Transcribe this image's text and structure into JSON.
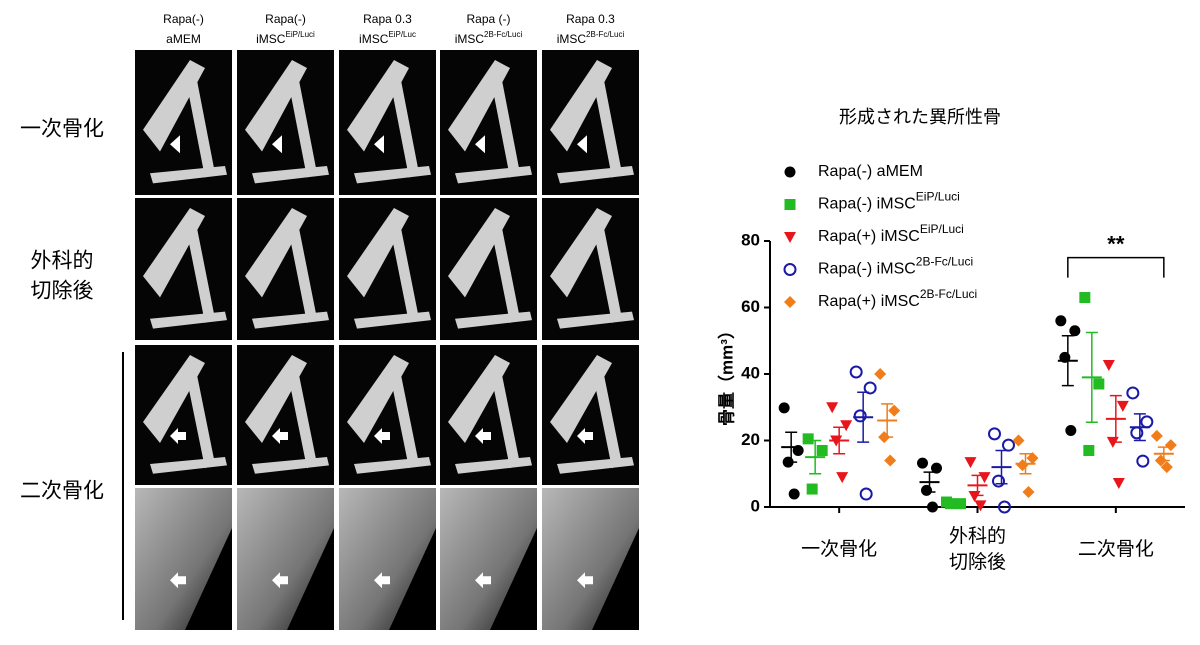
{
  "figure": {
    "column_headers": [
      {
        "top": "Rapa(-)",
        "bottom": "aMEM"
      },
      {
        "top": "Rapa(-)",
        "bottom": "iMSC",
        "bottom_sup": "EiP/Luci"
      },
      {
        "top": "Rapa 0.3",
        "bottom": "iMSC",
        "bottom_sup": "EiP/Luc"
      },
      {
        "top": "Rapa (-)",
        "bottom": "iMSC",
        "bottom_sup": "2B-Fc/Luci"
      },
      {
        "top": "Rapa 0.3",
        "bottom": "iMSC",
        "bottom_sup": "2B-Fc/Luci"
      }
    ],
    "row_labels": [
      [
        "一次骨化"
      ],
      [
        "外科的",
        "切除後"
      ],
      [
        "二次骨化"
      ]
    ]
  },
  "chart_data": {
    "type": "dotplot",
    "title": "形成された異所性骨",
    "ylabel": "骨量（mm³）",
    "categories": [
      [
        "一次骨化"
      ],
      [
        "外科的",
        "切除後"
      ],
      [
        "二次骨化"
      ]
    ],
    "ylim": [
      0,
      80
    ],
    "yticks": [
      0,
      20,
      40,
      60,
      80
    ],
    "series": [
      {
        "name": "Rapa(-) aMEM",
        "color": "#000000",
        "marker": "circle",
        "values": [
          [
            29.8,
            17,
            13.5,
            3.9
          ],
          [
            13.2,
            11.7,
            5,
            0
          ],
          [
            56,
            53,
            45,
            23
          ]
        ],
        "mean": [
          18,
          7.5,
          44
        ],
        "sem": [
          4.5,
          3,
          7.5
        ]
      },
      {
        "name": "Rapa(-) iMSC",
        "name_sup": "EiP/Luci",
        "color": "#22bb22",
        "marker": "square",
        "values": [
          [
            20.5,
            17,
            5.4
          ],
          [
            1.5,
            1,
            1
          ],
          [
            63,
            37,
            17
          ]
        ],
        "mean": [
          15,
          1.2,
          39
        ],
        "sem": [
          5,
          0.3,
          13.5
        ]
      },
      {
        "name": "Rapa(+) iMSC",
        "name_sup": "EiP/Luci",
        "color": "#e8161b",
        "marker": "triangle-down",
        "values": [
          [
            30,
            24.6,
            20,
            9
          ],
          [
            13.5,
            9,
            3.3,
            0.5
          ],
          [
            42.7,
            30.4,
            19.6,
            7.2
          ]
        ],
        "mean": [
          20,
          6.5,
          26.5
        ],
        "sem": [
          4,
          3,
          7
        ]
      },
      {
        "name": "Rapa(-) iMSC",
        "name_sup": "2B-Fc/Luci",
        "color": "#1a1aa6",
        "marker": "open-circle",
        "values": [
          [
            40.6,
            35.8,
            27.4,
            3.9
          ],
          [
            22,
            18.6,
            7.8,
            0
          ],
          [
            34.3,
            25.6,
            22.3,
            13.8
          ]
        ],
        "mean": [
          27,
          12,
          24
        ],
        "sem": [
          7.5,
          5,
          4
        ]
      },
      {
        "name": "Rapa(+) iMSC",
        "name_sup": "2B-Fc/Luci",
        "color": "#f07d1a",
        "marker": "diamond",
        "values": [
          [
            40,
            29,
            21,
            14
          ],
          [
            20,
            14.7,
            12.6,
            4.5
          ],
          [
            21.4,
            18.6,
            14,
            12
          ]
        ],
        "mean": [
          26,
          13,
          16
        ],
        "sem": [
          5,
          3,
          2
        ]
      }
    ],
    "significance": {
      "label": "**",
      "group": 2,
      "series": [
        0,
        4
      ],
      "y": 75
    }
  }
}
